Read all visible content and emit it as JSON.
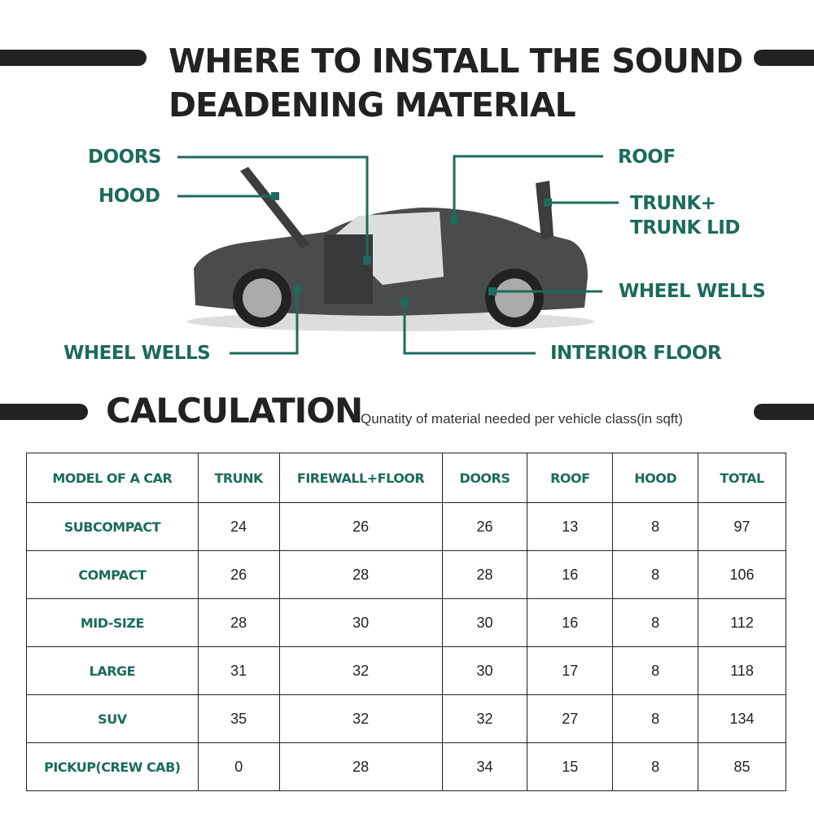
{
  "title_line1": "WHERE TO INSTALL THE SOUND",
  "title_line2": "DEADENING MATERIAL",
  "labels": {
    "doors": "DOORS",
    "hood": "HOOD",
    "wheel_wells_left": "WHEEL WELLS",
    "roof": "ROOF",
    "trunk_line1": "TRUNK+",
    "trunk_line2": "TRUNK LID",
    "wheel_wells_right": "WHEEL WELLS",
    "interior_floor": "INTERIOR FLOOR"
  },
  "calculation": {
    "heading": "CALCULATION",
    "subtitle": "Qunatity of material needed per vehicle class(in sqft)"
  },
  "accent_color": "#1d6b5a",
  "table": {
    "headers": [
      "MODEL OF A CAR",
      "TRUNK",
      "FIREWALL+FLOOR",
      "DOORS",
      "ROOF",
      "HOOD",
      "TOTAL"
    ],
    "rows": [
      [
        "SUBCOMPACT",
        "24",
        "26",
        "26",
        "13",
        "8",
        "97"
      ],
      [
        "COMPACT",
        "26",
        "28",
        "28",
        "16",
        "8",
        "106"
      ],
      [
        "MID-SIZE",
        "28",
        "30",
        "30",
        "16",
        "8",
        "112"
      ],
      [
        "LARGE",
        "31",
        "32",
        "30",
        "17",
        "8",
        "118"
      ],
      [
        "SUV",
        "35",
        "32",
        "32",
        "27",
        "8",
        "134"
      ],
      [
        "PICKUP(CREW CAB)",
        "0",
        "28",
        "34",
        "15",
        "8",
        "85"
      ]
    ]
  }
}
